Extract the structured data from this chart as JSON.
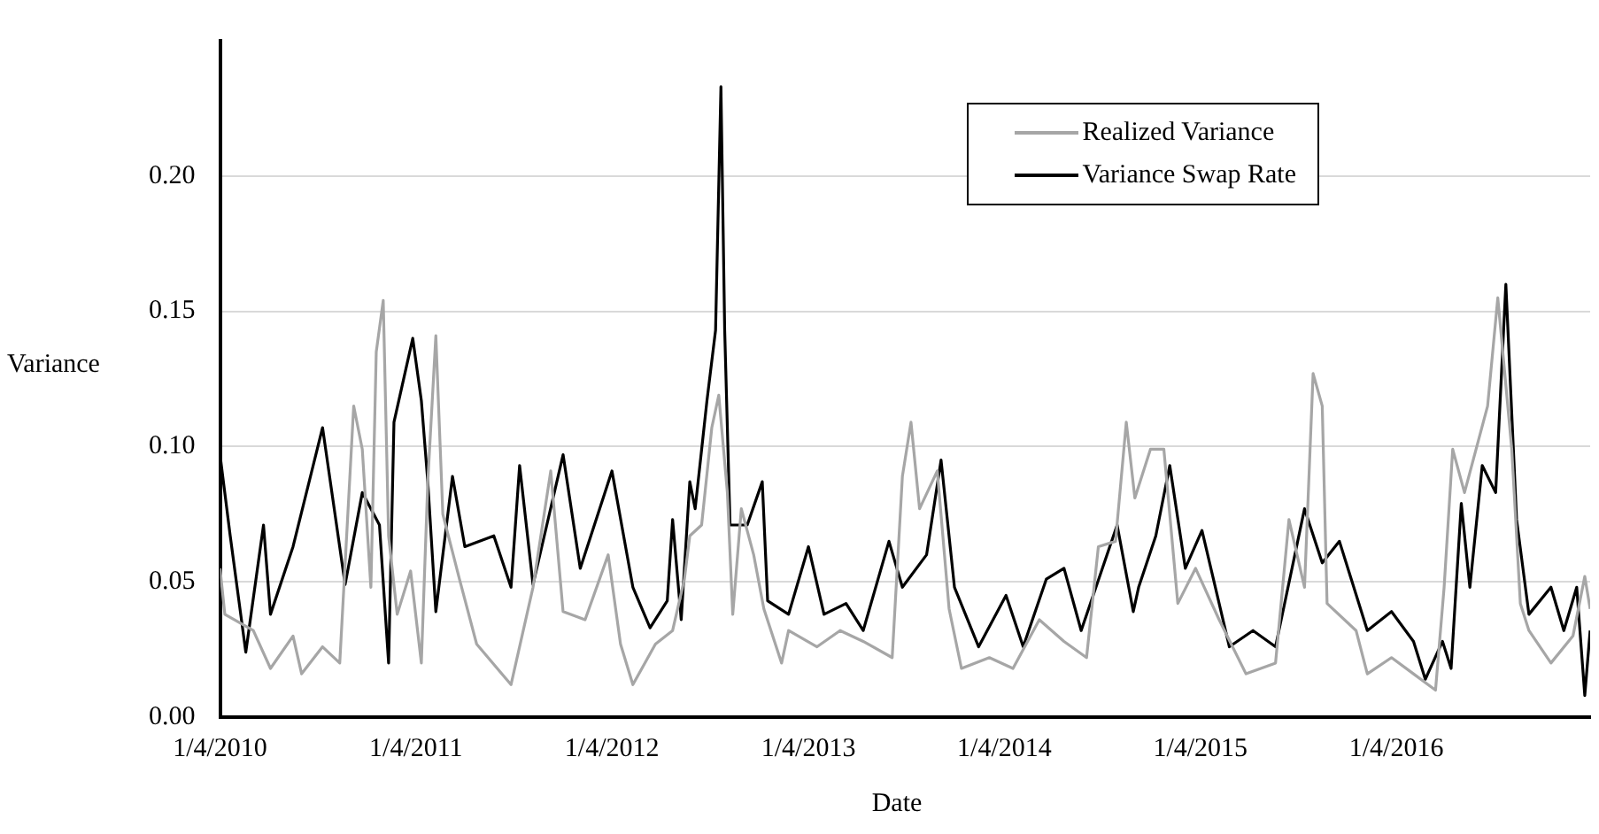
{
  "chart_data": {
    "type": "line",
    "xlabel": "Date",
    "ylabel": "Variance",
    "xlim": [
      "2010-01-04",
      "2016-12-30"
    ],
    "xticks": [
      {
        "value": "2010-01-04",
        "label": "1/4/2010"
      },
      {
        "value": "2011-01-04",
        "label": "1/4/2011"
      },
      {
        "value": "2012-01-04",
        "label": "1/4/2012"
      },
      {
        "value": "2013-01-04",
        "label": "1/4/2013"
      },
      {
        "value": "2014-01-04",
        "label": "1/4/2014"
      },
      {
        "value": "2015-01-04",
        "label": "1/4/2015"
      },
      {
        "value": "2016-01-04",
        "label": "1/4/2016"
      }
    ],
    "ylim": [
      0,
      0.25
    ],
    "yticks": [
      {
        "value": 0,
        "label": "0.00"
      },
      {
        "value": 0.05,
        "label": "0.05"
      },
      {
        "value": 0.1,
        "label": "0.10"
      },
      {
        "value": 0.15,
        "label": "0.15"
      },
      {
        "value": 0.2,
        "label": "0.20"
      }
    ],
    "grid": "y",
    "legend": "top right",
    "line_style": "solid",
    "series": [
      {
        "name": "Realized Variance",
        "color": "#a6a6a6",
        "x": [
          "2010-01-04",
          "2010-01-13",
          "2010-03-07",
          "2010-04-08",
          "2010-05-20",
          "2010-06-05",
          "2010-07-14",
          "2010-08-15",
          "2010-09-10",
          "2010-09-26",
          "2010-10-12",
          "2010-10-22",
          "2010-11-04",
          "2010-11-14",
          "2010-11-30",
          "2010-12-25",
          "2011-01-14",
          "2011-01-26",
          "2011-02-10",
          "2011-02-23",
          "2011-03-26",
          "2011-04-27",
          "2011-06-30",
          "2011-08-10",
          "2011-09-12",
          "2011-10-05",
          "2011-11-15",
          "2011-12-28",
          "2012-01-20",
          "2012-02-12",
          "2012-03-25",
          "2012-04-26",
          "2012-05-18",
          "2012-05-28",
          "2012-06-19",
          "2012-07-08",
          "2012-07-21",
          "2012-08-06",
          "2012-08-16",
          "2012-09-01",
          "2012-09-24",
          "2012-10-13",
          "2012-11-15",
          "2012-11-28",
          "2013-01-20",
          "2013-03-04",
          "2013-04-16",
          "2013-06-09",
          "2013-06-28",
          "2013-07-14",
          "2013-07-30",
          "2013-09-01",
          "2013-09-23",
          "2013-10-16",
          "2013-12-07",
          "2014-01-20",
          "2014-03-10",
          "2014-04-25",
          "2014-06-06",
          "2014-06-28",
          "2014-07-30",
          "2014-08-19",
          "2014-09-04",
          "2014-10-03",
          "2014-10-28",
          "2014-11-23",
          "2014-12-26",
          "2015-02-08",
          "2015-03-30",
          "2015-05-24",
          "2015-06-18",
          "2015-07-17",
          "2015-08-02",
          "2015-08-19",
          "2015-08-28",
          "2015-10-21",
          "2015-11-11",
          "2015-12-26",
          "2016-02-05",
          "2016-03-17",
          "2016-04-02",
          "2016-04-18",
          "2016-05-10",
          "2016-06-22",
          "2016-07-11",
          "2016-08-06",
          "2016-08-22",
          "2016-09-07",
          "2016-10-18",
          "2016-11-28",
          "2016-12-20",
          "2016-12-30"
        ],
        "values": [
          0.055,
          0.038,
          0.032,
          0.018,
          0.03,
          0.016,
          0.026,
          0.02,
          0.115,
          0.099,
          0.048,
          0.135,
          0.154,
          0.067,
          0.038,
          0.054,
          0.02,
          0.087,
          0.141,
          0.075,
          0.051,
          0.027,
          0.012,
          0.048,
          0.091,
          0.039,
          0.036,
          0.06,
          0.027,
          0.012,
          0.027,
          0.032,
          0.051,
          0.067,
          0.071,
          0.107,
          0.119,
          0.083,
          0.038,
          0.077,
          0.06,
          0.04,
          0.02,
          0.032,
          0.026,
          0.032,
          0.028,
          0.022,
          0.089,
          0.109,
          0.077,
          0.091,
          0.04,
          0.018,
          0.022,
          0.018,
          0.036,
          0.028,
          0.022,
          0.063,
          0.065,
          0.109,
          0.081,
          0.099,
          0.099,
          0.042,
          0.055,
          0.036,
          0.016,
          0.02,
          0.073,
          0.048,
          0.127,
          0.115,
          0.042,
          0.032,
          0.016,
          0.022,
          0.016,
          0.01,
          0.048,
          0.099,
          0.083,
          0.115,
          0.155,
          0.099,
          0.042,
          0.032,
          0.02,
          0.03,
          0.052,
          0.04
        ]
      },
      {
        "name": "Variance Swap Rate",
        "color": "#000000",
        "x": [
          "2010-01-04",
          "2010-01-23",
          "2010-02-21",
          "2010-03-26",
          "2010-04-08",
          "2010-05-20",
          "2010-07-14",
          "2010-08-25",
          "2010-09-26",
          "2010-10-28",
          "2010-11-14",
          "2010-11-24",
          "2010-12-29",
          "2011-01-14",
          "2011-01-26",
          "2011-02-10",
          "2011-03-13",
          "2011-04-05",
          "2011-05-29",
          "2011-06-30",
          "2011-07-16",
          "2011-08-10",
          "2011-10-05",
          "2011-11-06",
          "2012-01-04",
          "2012-02-12",
          "2012-03-15",
          "2012-04-16",
          "2012-04-26",
          "2012-05-12",
          "2012-05-28",
          "2012-06-07",
          "2012-06-29",
          "2012-07-15",
          "2012-07-25",
          "2012-08-01",
          "2012-08-11",
          "2012-09-12",
          "2012-10-10",
          "2012-10-20",
          "2012-11-28",
          "2013-01-04",
          "2013-02-02",
          "2013-03-15",
          "2013-04-16",
          "2013-06-03",
          "2013-06-28",
          "2013-08-12",
          "2013-09-08",
          "2013-10-03",
          "2013-11-17",
          "2014-01-07",
          "2014-02-08",
          "2014-03-23",
          "2014-04-25",
          "2014-05-27",
          "2014-08-02",
          "2014-09-01",
          "2014-09-11",
          "2014-10-13",
          "2014-11-08",
          "2014-12-07",
          "2015-01-07",
          "2015-02-27",
          "2015-04-12",
          "2015-05-24",
          "2015-07-17",
          "2015-08-19",
          "2015-09-20",
          "2015-11-11",
          "2015-12-26",
          "2016-02-05",
          "2016-02-27",
          "2016-03-30",
          "2016-04-15",
          "2016-05-04",
          "2016-05-20",
          "2016-06-12",
          "2016-07-07",
          "2016-07-26",
          "2016-08-15",
          "2016-09-07",
          "2016-10-18",
          "2016-11-11",
          "2016-12-05",
          "2016-12-20",
          "2016-12-30"
        ],
        "values": [
          0.097,
          0.067,
          0.024,
          0.071,
          0.038,
          0.063,
          0.107,
          0.049,
          0.083,
          0.071,
          0.02,
          0.109,
          0.14,
          0.117,
          0.087,
          0.039,
          0.089,
          0.063,
          0.067,
          0.048,
          0.093,
          0.049,
          0.097,
          0.055,
          0.091,
          0.048,
          0.033,
          0.043,
          0.073,
          0.036,
          0.087,
          0.077,
          0.117,
          0.143,
          0.233,
          0.143,
          0.071,
          0.071,
          0.087,
          0.043,
          0.038,
          0.063,
          0.038,
          0.042,
          0.032,
          0.065,
          0.048,
          0.06,
          0.095,
          0.048,
          0.026,
          0.045,
          0.026,
          0.051,
          0.055,
          0.032,
          0.071,
          0.039,
          0.048,
          0.067,
          0.093,
          0.055,
          0.069,
          0.026,
          0.032,
          0.026,
          0.077,
          0.057,
          0.065,
          0.032,
          0.039,
          0.028,
          0.014,
          0.028,
          0.018,
          0.079,
          0.048,
          0.093,
          0.083,
          0.16,
          0.073,
          0.038,
          0.048,
          0.032,
          0.048,
          0.008,
          0.032
        ]
      }
    ]
  }
}
